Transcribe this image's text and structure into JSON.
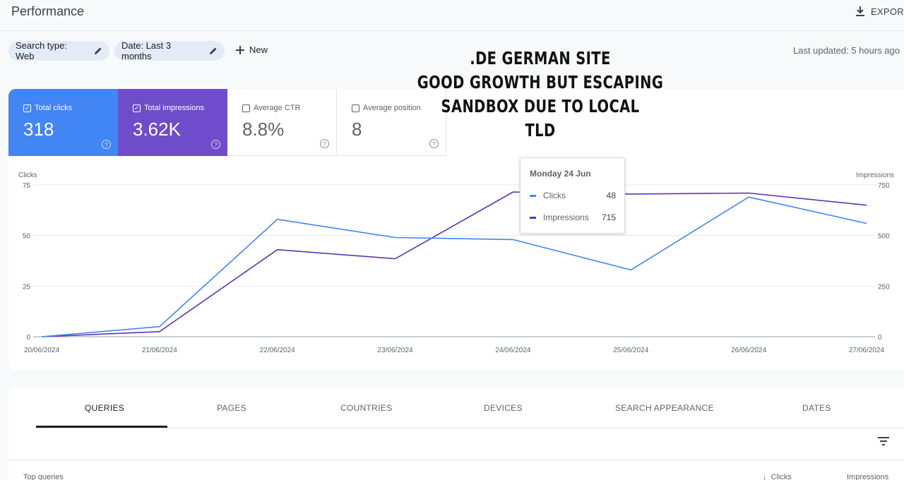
{
  "header": {
    "title": "Performance",
    "export_label": "EXPOR"
  },
  "filters": {
    "search_type": "Search type: Web",
    "date": "Date: Last 3 months",
    "new_label": "New",
    "last_updated": "Last updated: 5 hours ago"
  },
  "overlay_text": {
    "line1": ".DE GERMAN SITE",
    "line2": "GOOD GROWTH BUT ESCAPING SANDBOX DUE TO LOCAL",
    "line3": "TLD"
  },
  "metrics": [
    {
      "label": "Total clicks",
      "value": "318",
      "checked": true,
      "color": "#4285f4"
    },
    {
      "label": "Total impressions",
      "value": "3.62K",
      "checked": true,
      "color": "#6f4cc9"
    },
    {
      "label": "Average CTR",
      "value": "8.8%",
      "checked": false
    },
    {
      "label": "Average position",
      "value": "8",
      "checked": false
    }
  ],
  "chart_data": {
    "type": "line",
    "x": [
      "20/06/2024",
      "21/06/2024",
      "22/06/2024",
      "23/06/2024",
      "24/06/2024",
      "25/06/2024",
      "26/06/2024",
      "27/06/2024"
    ],
    "left_axis": {
      "label": "Clicks",
      "ylim": [
        0,
        75
      ],
      "ticks": [
        "0",
        "25",
        "50",
        "75"
      ]
    },
    "right_axis": {
      "label": "Impressions",
      "ylim": [
        0,
        750
      ],
      "ticks": [
        "0",
        "250",
        "500",
        "750"
      ]
    },
    "series": [
      {
        "name": "Clicks",
        "axis": "left",
        "color": "#4285f4",
        "values": [
          0,
          5,
          58,
          49,
          48,
          33,
          69,
          56
        ]
      },
      {
        "name": "Impressions",
        "axis": "right",
        "color": "#5e35b1",
        "values": [
          0,
          25,
          430,
          385,
          715,
          705,
          710,
          650
        ]
      }
    ],
    "grid": true
  },
  "tooltip": {
    "date": "Monday 24 Jun",
    "rows": [
      {
        "name": "Clicks",
        "value": "48",
        "color": "#4285f4"
      },
      {
        "name": "Impressions",
        "value": "715",
        "color": "#5e35b1"
      }
    ]
  },
  "tabs": [
    "QUERIES",
    "PAGES",
    "COUNTRIES",
    "DEVICES",
    "SEARCH APPEARANCE",
    "DATES"
  ],
  "table": {
    "col_query": "Top queries",
    "col_clicks": "Clicks",
    "col_impressions": "Impressions"
  }
}
